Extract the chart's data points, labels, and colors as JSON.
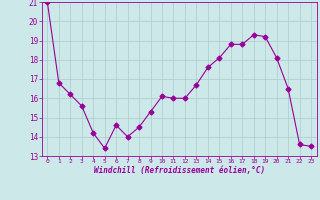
{
  "x": [
    0,
    1,
    2,
    3,
    4,
    5,
    6,
    7,
    8,
    9,
    10,
    11,
    12,
    13,
    14,
    15,
    16,
    17,
    18,
    19,
    20,
    21,
    22,
    23
  ],
  "y": [
    21.0,
    16.8,
    16.2,
    15.6,
    14.2,
    13.4,
    14.6,
    14.0,
    14.5,
    15.3,
    16.1,
    16.0,
    16.0,
    16.7,
    17.6,
    18.1,
    18.8,
    18.8,
    19.3,
    19.2,
    18.1,
    16.5,
    13.6,
    13.5
  ],
  "line_color": "#990099",
  "marker": "D",
  "marker_size": 2.5,
  "bg_color": "#cce8e8",
  "grid_color": "#aacccc",
  "xlabel": "Windchill (Refroidissement éolien,°C)",
  "tick_color": "#990099",
  "ylim": [
    13,
    21
  ],
  "xlim": [
    -0.5,
    23.5
  ],
  "yticks": [
    13,
    14,
    15,
    16,
    17,
    18,
    19,
    20,
    21
  ],
  "xticks": [
    0,
    1,
    2,
    3,
    4,
    5,
    6,
    7,
    8,
    9,
    10,
    11,
    12,
    13,
    14,
    15,
    16,
    17,
    18,
    19,
    20,
    21,
    22,
    23
  ],
  "xlabel_fontsize": 5.5,
  "ytick_fontsize": 5.5,
  "xtick_fontsize": 4.5
}
